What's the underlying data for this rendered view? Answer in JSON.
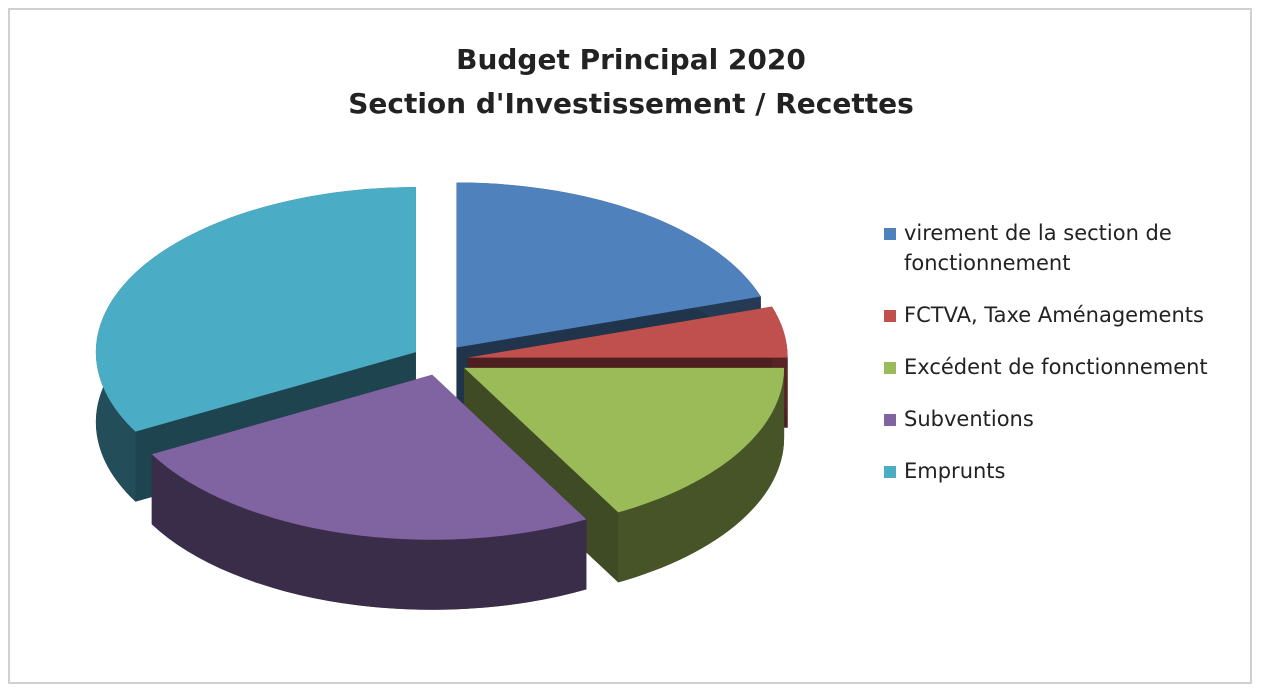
{
  "chart_data": {
    "type": "pie3d",
    "title": [
      "Budget Principal 2020",
      "Section d'Investissement / Recettes"
    ],
    "categories": [
      "virement de la section de fonctionnement",
      "FCTVA, Taxe Aménagements",
      "Excédent de fonctionnement",
      "Subventions",
      "Emprunts"
    ],
    "values": [
      20,
      5,
      17,
      25,
      33
    ],
    "colors": [
      "#4f81bd",
      "#c0504d",
      "#9bbb59",
      "#8064a2",
      "#4bacc6"
    ],
    "legend": "right"
  }
}
